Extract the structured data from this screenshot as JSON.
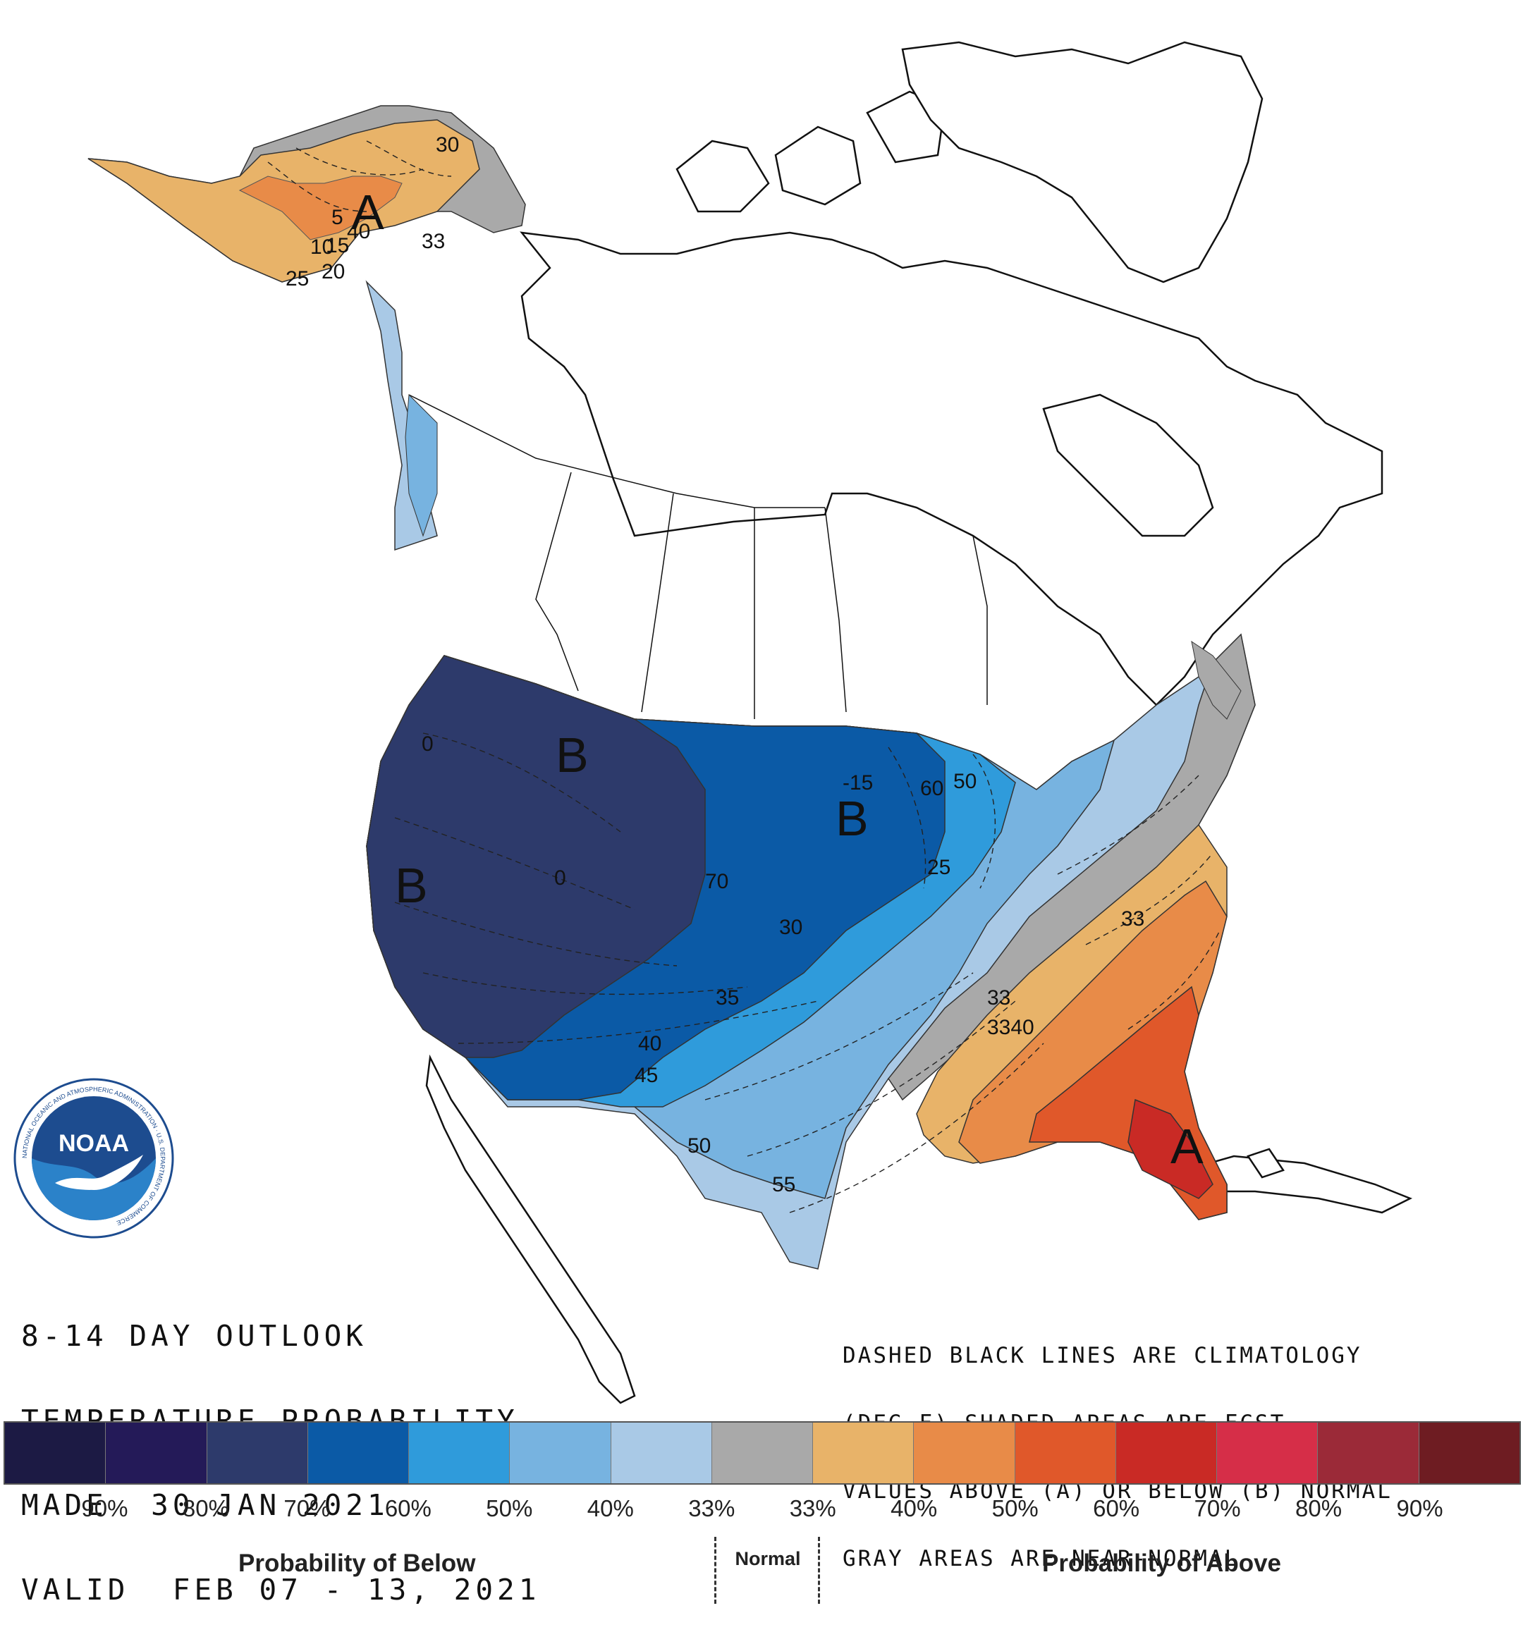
{
  "outlook": {
    "line1": "8-14 DAY OUTLOOK",
    "line2": "TEMPERATURE PROBABILITY",
    "line3": "MADE  30 JAN 2021",
    "line4": "VALID  FEB 07 - 13, 2021"
  },
  "note": {
    "line1": "DASHED BLACK LINES ARE CLIMATOLOGY",
    "line2": "(DEG F) SHADED AREAS ARE FCST",
    "line3": "VALUES ABOVE (A) OR BELOW (B) NORMAL",
    "line4": "GRAY AREAS ARE NEAR-NORMAL"
  },
  "logo": {
    "text": "NOAA",
    "ring_text": "NATIONAL OCEANIC AND ATMOSPHERIC ADMINISTRATION · U.S. DEPARTMENT OF COMMERCE"
  },
  "legend": {
    "colors": [
      "#1c1a44",
      "#241a58",
      "#2d3a6b",
      "#0b5aa6",
      "#2f9bdb",
      "#77b3e0",
      "#a9c9e6",
      "#a9a9a9",
      "#e8b369",
      "#e88b48",
      "#e0582a",
      "#c92a25",
      "#d62e48",
      "#9b2a38",
      "#6e1c22"
    ],
    "percent_labels": [
      "90%",
      "80%",
      "70%",
      "60%",
      "50%",
      "40%",
      "33%",
      "33%",
      "40%",
      "50%",
      "60%",
      "70%",
      "80%",
      "90%"
    ],
    "below_label": "Probability of Below",
    "normal_label": "Normal",
    "above_label": "Probability of Above"
  },
  "map_labels": {
    "regions": [
      "A",
      "B",
      "B",
      "B",
      "A"
    ],
    "contours": [
      "30",
      "5",
      "40",
      "33",
      "10",
      "15",
      "20",
      "25",
      "0",
      "0",
      "-15",
      "60",
      "50",
      "70",
      "25",
      "30",
      "35",
      "40",
      "45",
      "50",
      "55",
      "33",
      "33",
      "3340"
    ]
  }
}
